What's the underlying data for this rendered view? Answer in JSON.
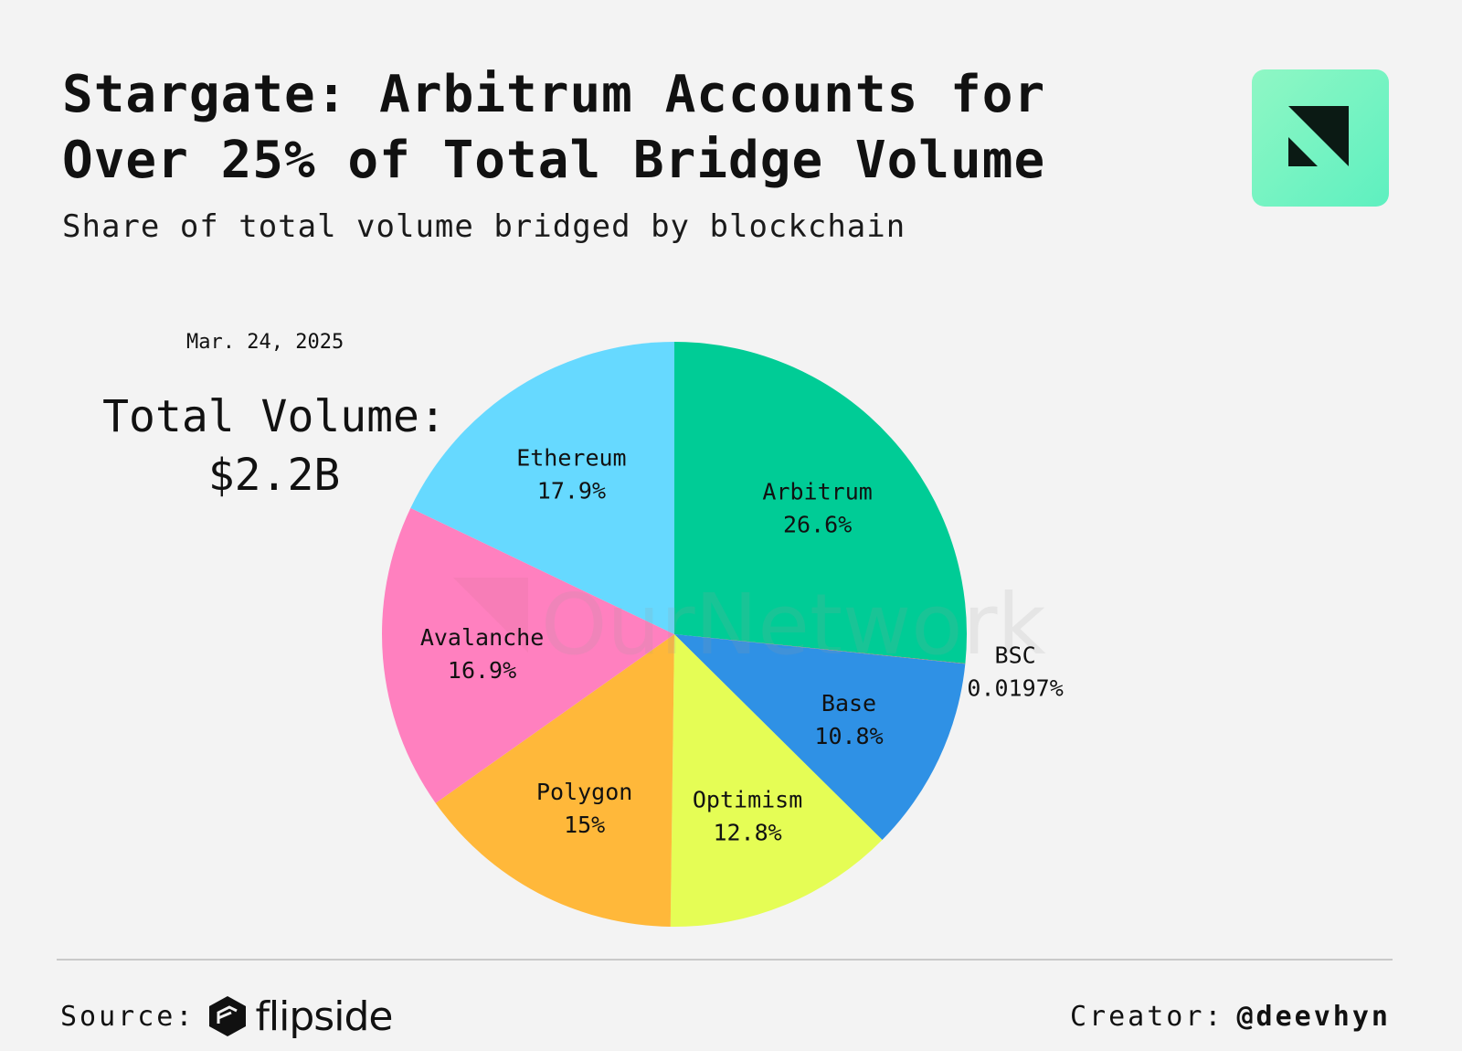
{
  "header": {
    "title_line1": "Stargate: Arbitrum Accounts for",
    "title_line2": "Over 25% of Total Bridge Volume",
    "subtitle": "Share of total volume bridged by blockchain"
  },
  "summary": {
    "date": "Mar. 24, 2025",
    "total_label": "Total Volume:",
    "total_value": "$2.2B"
  },
  "watermark": "OurNetwork",
  "footer": {
    "source_label": "Source:",
    "source_brand": "flipside",
    "creator_label": "Creator:",
    "creator_handle": "@deevhyn"
  },
  "colors": {
    "background": "#f3f3f3",
    "logo_badge": "#7ef5c8"
  },
  "icons": {
    "brand_logo": "ournetwork-logo-icon",
    "source_logo": "flipside-logo-icon"
  },
  "chart_data": {
    "type": "pie",
    "title": "Stargate: Arbitrum Accounts for Over 25% of Total Bridge Volume",
    "subtitle": "Share of total volume bridged by blockchain",
    "unit": "%",
    "slices": [
      {
        "name": "Arbitrum",
        "value": 26.6,
        "label": "26.6%",
        "color": "#00cc96"
      },
      {
        "name": "BSC",
        "value": 0.0197,
        "label": "0.0197%",
        "color": "#ff5a36"
      },
      {
        "name": "Base",
        "value": 10.8,
        "label": "10.8%",
        "color": "#2f91e5"
      },
      {
        "name": "Optimism",
        "value": 12.8,
        "label": "12.8%",
        "color": "#e5fd55"
      },
      {
        "name": "Polygon",
        "value": 15,
        "label": "15%",
        "color": "#ffb83a"
      },
      {
        "name": "Avalanche",
        "value": 16.9,
        "label": "16.9%",
        "color": "#ff80bf"
      },
      {
        "name": "Ethereum",
        "value": 17.9,
        "label": "17.9%",
        "color": "#66d9ff"
      }
    ],
    "start_angle": "12 o'clock",
    "direction": "clockwise",
    "legend": "none"
  }
}
